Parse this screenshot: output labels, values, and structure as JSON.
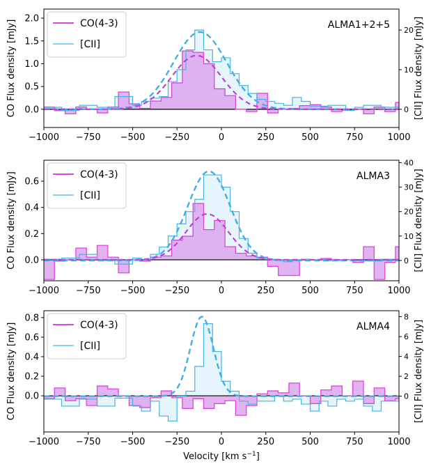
{
  "figure": {
    "xlabel": "Velocity [km s",
    "xlabel_sup": "−1",
    "xlabel_close": "]"
  },
  "colors": {
    "co": "#dd44dd",
    "co_fill": "#dca6ee",
    "cii": "#44b4e8",
    "cii_fill": "#e6f5fc",
    "cii_gauss": "#3fb0e6",
    "co_gauss": "#c040d8"
  },
  "chart_data": [
    {
      "type": "line",
      "title": "ALMA1+2+5",
      "xlim": [
        -1000,
        1000
      ],
      "xticks": [
        -1000,
        -750,
        -500,
        -250,
        0,
        250,
        500,
        750,
        1000
      ],
      "xtick_labels": [
        "−1000",
        "−750",
        "−500",
        "−250",
        "0",
        "250",
        "500",
        "750",
        "1000"
      ],
      "ylabel": "CO Flux density [mJy]",
      "ylim": [
        -0.4,
        2.2
      ],
      "yticks": [
        0.0,
        0.5,
        1.0,
        1.5,
        2.0
      ],
      "ytick_labels": [
        "0.0",
        "0.5",
        "1.0",
        "1.5",
        "2.0"
      ],
      "y2label": "[CII] Flux density [mJy]",
      "y2lim": [
        -4.6,
        25.3
      ],
      "y2ticks": [
        0,
        10,
        20
      ],
      "y2tick_labels": [
        "0",
        "10",
        "20"
      ],
      "legend": {
        "position": "top-left",
        "entries": [
          "CO(4-3)",
          "[CII]"
        ]
      },
      "series": [
        {
          "name": "CO(4-3)",
          "axis": "left",
          "style": "step-filled",
          "bin_edges": [
            -1000,
            -940,
            -880,
            -820,
            -760,
            -700,
            -640,
            -580,
            -520,
            -460,
            -400,
            -340,
            -280,
            -220,
            -160,
            -100,
            -40,
            20,
            80,
            140,
            200,
            260,
            320,
            380,
            440,
            500,
            560,
            620,
            680,
            740,
            800,
            860,
            920,
            980,
            1000
          ],
          "values": [
            0.05,
            -0.03,
            -0.1,
            0.05,
            0.0,
            -0.08,
            0.05,
            0.38,
            0.12,
            0.02,
            0.18,
            0.26,
            0.58,
            1.28,
            1.25,
            1.0,
            0.45,
            0.3,
            0.0,
            -0.05,
            0.35,
            -0.08,
            0.0,
            0.02,
            0.08,
            0.1,
            0.05,
            -0.05,
            -0.02,
            0.0,
            -0.1,
            0.05,
            -0.05,
            0.15
          ]
        },
        {
          "name": "[CII]",
          "axis": "right",
          "style": "step",
          "bin_edges": [
            -1000,
            -900,
            -800,
            -700,
            -600,
            -500,
            -450,
            -400,
            -350,
            -300,
            -250,
            -200,
            -150,
            -100,
            -50,
            0,
            50,
            100,
            150,
            200,
            250,
            300,
            350,
            400,
            450,
            500,
            600,
            700,
            750,
            800,
            900,
            1000
          ],
          "values": [
            0.5,
            -0.3,
            1.0,
            0.5,
            3.2,
            1.0,
            2.0,
            2.8,
            3.2,
            7.0,
            10.0,
            15.0,
            20.0,
            15.0,
            12.0,
            13.0,
            9.0,
            6.0,
            4.0,
            2.5,
            2.0,
            1.5,
            1.0,
            3.0,
            2.0,
            0.8,
            1.0,
            -0.3,
            0.5,
            1.0,
            0.5
          ],
          "gaussian": {
            "amplitude": 19.5,
            "center": -120,
            "sigma": 150
          }
        },
        {
          "name": "CO(4-3) fit",
          "axis": "left",
          "style": "dashed",
          "gaussian": {
            "amplitude": 1.18,
            "center": -140,
            "sigma": 140
          }
        }
      ]
    },
    {
      "type": "line",
      "title": "ALMA3",
      "xlim": [
        -1000,
        1000
      ],
      "xticks": [
        -1000,
        -750,
        -500,
        -250,
        0,
        250,
        500,
        750,
        1000
      ],
      "xtick_labels": [
        "−1000",
        "−750",
        "−500",
        "−250",
        "0",
        "250",
        "500",
        "750",
        "1000"
      ],
      "ylabel": "CO Flux density [mJy]",
      "ylim": [
        -0.16,
        0.76
      ],
      "yticks": [
        0.0,
        0.2,
        0.4,
        0.6
      ],
      "ytick_labels": [
        "0.0",
        "0.2",
        "0.4",
        "0.6"
      ],
      "y2label": "[CII] Flux density [mJy]",
      "y2lim": [
        -8.3,
        41.0
      ],
      "y2ticks": [
        0,
        10,
        20,
        30,
        40
      ],
      "y2tick_labels": [
        "0",
        "10",
        "20",
        "30",
        "40"
      ],
      "legend": {
        "position": "top-left",
        "entries": [
          "CO(4-3)",
          "[CII]"
        ]
      },
      "series": [
        {
          "name": "CO(4-3)",
          "axis": "left",
          "style": "step-filled",
          "bin_edges": [
            -1000,
            -940,
            -880,
            -820,
            -760,
            -700,
            -640,
            -580,
            -520,
            -460,
            -400,
            -340,
            -280,
            -220,
            -160,
            -100,
            -40,
            20,
            80,
            140,
            200,
            260,
            320,
            380,
            440,
            500,
            560,
            620,
            680,
            740,
            800,
            860,
            920,
            980,
            1000
          ],
          "values": [
            -0.15,
            -0.01,
            0.0,
            0.09,
            0.02,
            0.11,
            0.02,
            -0.1,
            0.0,
            -0.01,
            0.02,
            0.03,
            0.15,
            0.18,
            0.43,
            0.23,
            0.3,
            0.1,
            0.05,
            0.03,
            0.02,
            -0.05,
            -0.12,
            -0.12,
            0.0,
            0.0,
            0.01,
            0.0,
            0.0,
            -0.02,
            0.1,
            -0.15,
            -0.02,
            0.1
          ]
        },
        {
          "name": "[CII]",
          "axis": "right",
          "style": "step",
          "bin_edges": [
            -1000,
            -900,
            -800,
            -700,
            -600,
            -500,
            -450,
            -400,
            -350,
            -300,
            -250,
            -200,
            -150,
            -100,
            -50,
            0,
            50,
            100,
            150,
            200,
            250,
            300,
            350,
            400,
            450,
            500,
            600,
            700,
            750,
            800,
            900,
            1000
          ],
          "values": [
            0.5,
            1.0,
            2.5,
            0.0,
            -1.5,
            1.0,
            0.5,
            2.5,
            5.5,
            10.0,
            15.0,
            20.0,
            25.0,
            35.0,
            35.0,
            30.0,
            20.0,
            9.0,
            3.0,
            1.0,
            0.5,
            0.0,
            -0.5,
            0.0,
            0.5,
            0.3,
            0.0,
            0.2,
            0.0,
            -0.2,
            0.5
          ],
          "gaussian": {
            "amplitude": 36.5,
            "center": -70,
            "sigma": 120
          }
        },
        {
          "name": "CO(4-3) fit",
          "axis": "left",
          "style": "dashed",
          "gaussian": {
            "amplitude": 0.35,
            "center": -80,
            "sigma": 120
          }
        }
      ]
    },
    {
      "type": "line",
      "title": "ALMA4",
      "xlim": [
        -1000,
        1000
      ],
      "xticks": [
        -1000,
        -750,
        -500,
        -250,
        0,
        250,
        500,
        750,
        1000
      ],
      "xtick_labels": [
        "−1000",
        "−750",
        "−500",
        "−250",
        "0",
        "250",
        "500",
        "750",
        "1000"
      ],
      "ylabel": "CO Flux density [mJy]",
      "ylim": [
        -0.37,
        0.87
      ],
      "yticks": [
        0.0,
        0.2,
        0.4,
        0.6,
        0.8
      ],
      "ytick_labels": [
        "0.0",
        "0.2",
        "0.4",
        "0.6",
        "0.8"
      ],
      "y2label": "[CII] Flux density [mJy]",
      "y2lim": [
        -3.6,
        8.6
      ],
      "y2ticks": [
        0,
        2,
        4,
        6,
        8
      ],
      "y2tick_labels": [
        "0",
        "2",
        "4",
        "6",
        "8"
      ],
      "legend": {
        "position": "top-left",
        "entries": [
          "CO(4-3)",
          "[CII]"
        ]
      },
      "series": [
        {
          "name": "CO(4-3)",
          "axis": "left",
          "style": "step-filled",
          "bin_edges": [
            -1000,
            -940,
            -880,
            -820,
            -760,
            -700,
            -640,
            -580,
            -520,
            -460,
            -400,
            -340,
            -280,
            -220,
            -160,
            -100,
            -40,
            20,
            80,
            140,
            200,
            260,
            320,
            380,
            440,
            500,
            560,
            620,
            680,
            740,
            800,
            860,
            920,
            980,
            1000
          ],
          "values": [
            -0.03,
            0.08,
            -0.05,
            -0.03,
            -0.1,
            0.1,
            0.07,
            0.0,
            -0.1,
            -0.12,
            -0.02,
            0.05,
            -0.02,
            -0.13,
            -0.03,
            -0.13,
            -0.08,
            -0.05,
            -0.2,
            -0.1,
            0.02,
            0.05,
            0.03,
            0.13,
            0.0,
            -0.08,
            0.06,
            0.1,
            0.0,
            0.15,
            -0.08,
            0.08,
            -0.05,
            -0.03
          ]
        },
        {
          "name": "[CII]",
          "axis": "right",
          "style": "step",
          "bin_edges": [
            -1000,
            -900,
            -800,
            -700,
            -600,
            -500,
            -450,
            -400,
            -350,
            -300,
            -250,
            -200,
            -150,
            -100,
            -50,
            0,
            50,
            100,
            150,
            200,
            250,
            300,
            350,
            400,
            450,
            500,
            550,
            600,
            650,
            700,
            750,
            800,
            850,
            900,
            1000
          ],
          "values": [
            -0.3,
            -1.0,
            -0.3,
            -1.0,
            -0.2,
            -1.0,
            -1.5,
            -0.5,
            -2.0,
            -2.5,
            0.0,
            0.5,
            3.0,
            7.3,
            4.5,
            1.5,
            0.5,
            -0.5,
            -0.8,
            -0.5,
            -0.5,
            0.0,
            -0.5,
            -0.3,
            -0.8,
            -1.5,
            -0.5,
            -1.0,
            -0.3,
            -0.5,
            -0.3,
            -1.0,
            -1.5,
            -0.5
          ],
          "gaussian": {
            "amplitude": 8.0,
            "center": -110,
            "sigma": 65
          }
        }
      ]
    }
  ]
}
